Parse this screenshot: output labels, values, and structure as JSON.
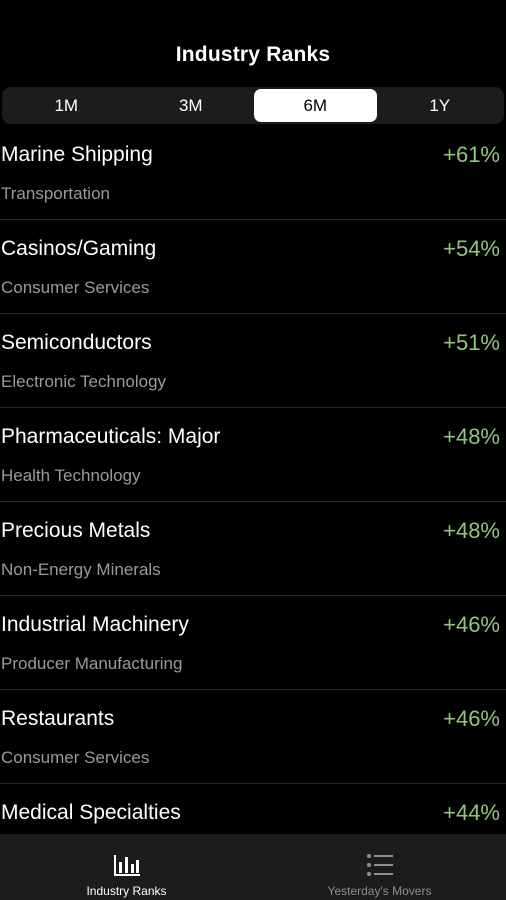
{
  "header": {
    "title": "Industry Ranks"
  },
  "periods": {
    "items": [
      "1M",
      "3M",
      "6M",
      "1Y"
    ],
    "selected_index": 2
  },
  "industries": [
    {
      "name": "Marine Shipping",
      "sector": "Transportation",
      "change": "+61%"
    },
    {
      "name": "Casinos/Gaming",
      "sector": "Consumer Services",
      "change": "+54%"
    },
    {
      "name": "Semiconductors",
      "sector": "Electronic Technology",
      "change": "+51%"
    },
    {
      "name": "Pharmaceuticals: Major",
      "sector": "Health Technology",
      "change": "+48%"
    },
    {
      "name": "Precious Metals",
      "sector": "Non-Energy Minerals",
      "change": "+48%"
    },
    {
      "name": "Industrial Machinery",
      "sector": "Producer Manufacturing",
      "change": "+46%"
    },
    {
      "name": "Restaurants",
      "sector": "Consumer Services",
      "change": "+46%"
    },
    {
      "name": "Medical Specialties",
      "sector": "",
      "change": "+44%"
    }
  ],
  "tabbar": {
    "tabs": [
      {
        "label": "Industry Ranks",
        "icon": "bar-chart-icon",
        "active": true
      },
      {
        "label": "Yesterday's Movers",
        "icon": "list-icon",
        "active": false
      }
    ]
  },
  "colors": {
    "background": "#000000",
    "positive": "#8fc67e",
    "secondary_text": "#9a9a9e",
    "segment_selected": "#ffffff",
    "tabbar_background": "#1c1c1e"
  }
}
